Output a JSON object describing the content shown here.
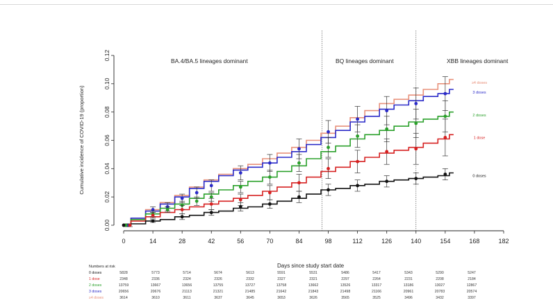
{
  "chart_data": {
    "type": "line",
    "title": "",
    "xlabel": "Days since study start date",
    "ylabel": "Cumulative incidence of COVID-19 (proportion)",
    "xlim": [
      0,
      182
    ],
    "ylim": [
      0,
      0.12
    ],
    "x_ticks": [
      0,
      14,
      28,
      42,
      56,
      70,
      84,
      98,
      112,
      126,
      140,
      154,
      168,
      182
    ],
    "y_ticks": [
      0.0,
      0.02,
      0.04,
      0.06,
      0.08,
      0.1,
      0.12
    ],
    "x_tick_labels": [
      "0",
      "14",
      "28",
      "42",
      "56",
      "70",
      "84",
      "98",
      "112",
      "126",
      "140",
      "154",
      "168",
      "182"
    ],
    "y_tick_labels": [
      "0.00",
      "0.02",
      "0.04",
      "0.06",
      "0.08",
      "0.10",
      "0.12"
    ],
    "grid": false,
    "period_dividers": [
      95,
      140
    ],
    "periods": [
      {
        "label": "BA.4/BA.5 lineages dominant"
      },
      {
        "label": "BQ lineages dominant"
      },
      {
        "label": "XBB lineages dominant"
      }
    ],
    "series": [
      {
        "name": "≥4 doses",
        "color": "#e8907a",
        "curve": [
          [
            0,
            0
          ],
          [
            7,
            0.005
          ],
          [
            14,
            0.011
          ],
          [
            21,
            0.016
          ],
          [
            28,
            0.021
          ],
          [
            35,
            0.027
          ],
          [
            42,
            0.032
          ],
          [
            49,
            0.036
          ],
          [
            56,
            0.04
          ],
          [
            63,
            0.043
          ],
          [
            70,
            0.047
          ],
          [
            77,
            0.051
          ],
          [
            84,
            0.055
          ],
          [
            91,
            0.06
          ],
          [
            98,
            0.065
          ],
          [
            105,
            0.07
          ],
          [
            112,
            0.076
          ],
          [
            119,
            0.081
          ],
          [
            126,
            0.086
          ],
          [
            133,
            0.089
          ],
          [
            140,
            0.092
          ],
          [
            147,
            0.096
          ],
          [
            154,
            0.1
          ],
          [
            158,
            0.103
          ]
        ],
        "points": []
      },
      {
        "name": "3 doses",
        "color": "#2a2ac8",
        "curve": [
          [
            0,
            0
          ],
          [
            7,
            0.005
          ],
          [
            14,
            0.01
          ],
          [
            21,
            0.015
          ],
          [
            28,
            0.02
          ],
          [
            35,
            0.026
          ],
          [
            42,
            0.031
          ],
          [
            49,
            0.035
          ],
          [
            56,
            0.039
          ],
          [
            63,
            0.041
          ],
          [
            70,
            0.044
          ],
          [
            77,
            0.048
          ],
          [
            84,
            0.052
          ],
          [
            91,
            0.057
          ],
          [
            98,
            0.062
          ],
          [
            105,
            0.067
          ],
          [
            112,
            0.073
          ],
          [
            119,
            0.077
          ],
          [
            126,
            0.082
          ],
          [
            133,
            0.085
          ],
          [
            140,
            0.088
          ],
          [
            147,
            0.091
          ],
          [
            154,
            0.093
          ],
          [
            158,
            0.096
          ]
        ],
        "points": [
          [
            2,
            0.0
          ],
          [
            14,
            0.011
          ],
          [
            21,
            0.013
          ],
          [
            28,
            0.019
          ],
          [
            35,
            0.023
          ],
          [
            42,
            0.028
          ],
          [
            56,
            0.037
          ],
          [
            70,
            0.044
          ],
          [
            84,
            0.054
          ],
          [
            98,
            0.066
          ],
          [
            112,
            0.075
          ],
          [
            126,
            0.081
          ],
          [
            140,
            0.086
          ],
          [
            154,
            0.093
          ]
        ],
        "err": [
          0.001,
          0.002,
          0.003,
          0.003,
          0.004,
          0.004,
          0.005,
          0.006,
          0.007,
          0.008,
          0.009,
          0.01,
          0.011,
          0.012
        ]
      },
      {
        "name": "2 doses",
        "color": "#2aa02a",
        "curve": [
          [
            0,
            0
          ],
          [
            7,
            0.004
          ],
          [
            14,
            0.008
          ],
          [
            21,
            0.012
          ],
          [
            28,
            0.015
          ],
          [
            35,
            0.019
          ],
          [
            42,
            0.022
          ],
          [
            49,
            0.025
          ],
          [
            56,
            0.028
          ],
          [
            63,
            0.031
          ],
          [
            70,
            0.034
          ],
          [
            77,
            0.038
          ],
          [
            84,
            0.042
          ],
          [
            91,
            0.047
          ],
          [
            98,
            0.052
          ],
          [
            105,
            0.056
          ],
          [
            112,
            0.061
          ],
          [
            119,
            0.064
          ],
          [
            126,
            0.067
          ],
          [
            133,
            0.07
          ],
          [
            140,
            0.073
          ],
          [
            147,
            0.075
          ],
          [
            154,
            0.077
          ],
          [
            158,
            0.08
          ]
        ],
        "points": [
          [
            1,
            0.0
          ],
          [
            14,
            0.008
          ],
          [
            21,
            0.011
          ],
          [
            28,
            0.014
          ],
          [
            35,
            0.017
          ],
          [
            42,
            0.02
          ],
          [
            56,
            0.027
          ],
          [
            70,
            0.034
          ],
          [
            84,
            0.044
          ],
          [
            98,
            0.055
          ],
          [
            112,
            0.063
          ],
          [
            126,
            0.068
          ],
          [
            140,
            0.072
          ],
          [
            154,
            0.077
          ]
        ],
        "err": [
          0.001,
          0.002,
          0.002,
          0.003,
          0.003,
          0.003,
          0.004,
          0.005,
          0.006,
          0.007,
          0.008,
          0.009,
          0.01,
          0.011
        ]
      },
      {
        "name": "1 dose",
        "color": "#d62020",
        "curve": [
          [
            0,
            0
          ],
          [
            7,
            0.003
          ],
          [
            14,
            0.006
          ],
          [
            21,
            0.009
          ],
          [
            28,
            0.011
          ],
          [
            35,
            0.013
          ],
          [
            42,
            0.015
          ],
          [
            49,
            0.017
          ],
          [
            56,
            0.019
          ],
          [
            63,
            0.021
          ],
          [
            70,
            0.024
          ],
          [
            77,
            0.027
          ],
          [
            84,
            0.03
          ],
          [
            91,
            0.034
          ],
          [
            98,
            0.038
          ],
          [
            105,
            0.041
          ],
          [
            112,
            0.045
          ],
          [
            119,
            0.048
          ],
          [
            126,
            0.051
          ],
          [
            133,
            0.053
          ],
          [
            140,
            0.055
          ],
          [
            147,
            0.058
          ],
          [
            154,
            0.061
          ],
          [
            158,
            0.064
          ]
        ],
        "points": [
          [
            3,
            0.0
          ],
          [
            14,
            0.007
          ],
          [
            28,
            0.011
          ],
          [
            42,
            0.015
          ],
          [
            56,
            0.018
          ],
          [
            70,
            0.023
          ],
          [
            84,
            0.03
          ],
          [
            98,
            0.04
          ],
          [
            112,
            0.045
          ],
          [
            126,
            0.052
          ],
          [
            140,
            0.054
          ],
          [
            154,
            0.062
          ]
        ],
        "err": [
          0.001,
          0.002,
          0.003,
          0.004,
          0.004,
          0.005,
          0.006,
          0.007,
          0.008,
          0.009,
          0.011,
          0.013
        ]
      },
      {
        "name": "0 doses",
        "color": "#111111",
        "curve": [
          [
            0,
            0
          ],
          [
            7,
            0.001
          ],
          [
            14,
            0.003
          ],
          [
            21,
            0.004
          ],
          [
            28,
            0.006
          ],
          [
            35,
            0.007
          ],
          [
            42,
            0.009
          ],
          [
            49,
            0.01
          ],
          [
            56,
            0.012
          ],
          [
            63,
            0.013
          ],
          [
            70,
            0.015
          ],
          [
            77,
            0.017
          ],
          [
            84,
            0.019
          ],
          [
            91,
            0.022
          ],
          [
            98,
            0.025
          ],
          [
            105,
            0.026
          ],
          [
            112,
            0.028
          ],
          [
            119,
            0.029
          ],
          [
            126,
            0.031
          ],
          [
            133,
            0.032
          ],
          [
            140,
            0.033
          ],
          [
            147,
            0.034
          ],
          [
            154,
            0.035
          ],
          [
            158,
            0.037
          ]
        ],
        "points": [
          [
            0,
            0.0
          ],
          [
            14,
            0.003
          ],
          [
            28,
            0.006
          ],
          [
            42,
            0.009
          ],
          [
            56,
            0.013
          ],
          [
            70,
            0.015
          ],
          [
            84,
            0.02
          ],
          [
            98,
            0.025
          ],
          [
            112,
            0.028
          ],
          [
            126,
            0.031
          ],
          [
            140,
            0.033
          ],
          [
            154,
            0.036
          ]
        ],
        "err": [
          0.0,
          0.001,
          0.002,
          0.002,
          0.003,
          0.003,
          0.004,
          0.004,
          0.004,
          0.004,
          0.004,
          0.004
        ]
      }
    ],
    "risk_table": {
      "title": "Numbers at risk",
      "rows": [
        {
          "name": "0 doses",
          "values": [
            "5828",
            "5773",
            "5714",
            "5674",
            "5613",
            "5591",
            "5531",
            "5486",
            "5417",
            "5343",
            "5290",
            "5247"
          ]
        },
        {
          "name": "1 dose",
          "values": [
            "2348",
            "2336",
            "2324",
            "2326",
            "2332",
            "2327",
            "2321",
            "2297",
            "2264",
            "2231",
            "2208",
            "2184"
          ]
        },
        {
          "name": "2 doses",
          "values": [
            "13759",
            "13667",
            "13656",
            "13755",
            "13727",
            "13758",
            "13662",
            "13526",
            "13317",
            "13186",
            "13027",
            "12867"
          ]
        },
        {
          "name": "3 doses",
          "values": [
            "20656",
            "20676",
            "21113",
            "21321",
            "21485",
            "21642",
            "21843",
            "21498",
            "21166",
            "20961",
            "20783",
            "20574"
          ]
        },
        {
          "name": "≥4 doses",
          "values": [
            "3614",
            "3610",
            "3611",
            "3637",
            "3645",
            "3653",
            "3626",
            "3565",
            "3525",
            "3496",
            "3432",
            "3397"
          ]
        }
      ]
    }
  }
}
